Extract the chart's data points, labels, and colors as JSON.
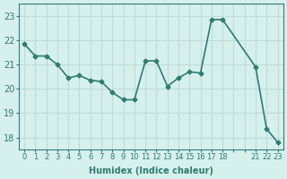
{
  "x": [
    0,
    1,
    2,
    3,
    4,
    5,
    6,
    7,
    8,
    9,
    10,
    11,
    12,
    13,
    14,
    15,
    16,
    17,
    18,
    21,
    22,
    23
  ],
  "y": [
    21.85,
    21.35,
    21.35,
    21.0,
    20.45,
    20.55,
    20.35,
    20.3,
    19.85,
    19.55,
    19.55,
    21.15,
    21.15,
    20.1,
    20.45,
    20.7,
    20.65,
    22.85,
    22.85,
    20.9,
    18.35,
    17.8
  ],
  "line_color": "#2e7d6e",
  "marker_color": "#2e7d6e",
  "bg_color": "#d6f0ed",
  "grid_color": "#c0dbd8",
  "axis_color": "#2e7d6e",
  "xlabel": "Humidex (Indice chaleur)",
  "xticks_all": [
    0,
    1,
    2,
    3,
    4,
    5,
    6,
    7,
    8,
    9,
    10,
    11,
    12,
    13,
    14,
    15,
    16,
    17,
    18,
    19,
    20,
    21,
    22,
    23
  ],
  "xtick_labels": [
    "0",
    "1",
    "2",
    "3",
    "4",
    "5",
    "6",
    "7",
    "8",
    "9",
    "10",
    "11",
    "12",
    "13",
    "14",
    "15",
    "16",
    "17",
    "18",
    "",
    "",
    "21",
    "22",
    "23"
  ],
  "ylim": [
    17.5,
    23.5
  ],
  "yticks": [
    18,
    19,
    20,
    21,
    22,
    23
  ],
  "xlim": [
    -0.5,
    23.5
  ]
}
